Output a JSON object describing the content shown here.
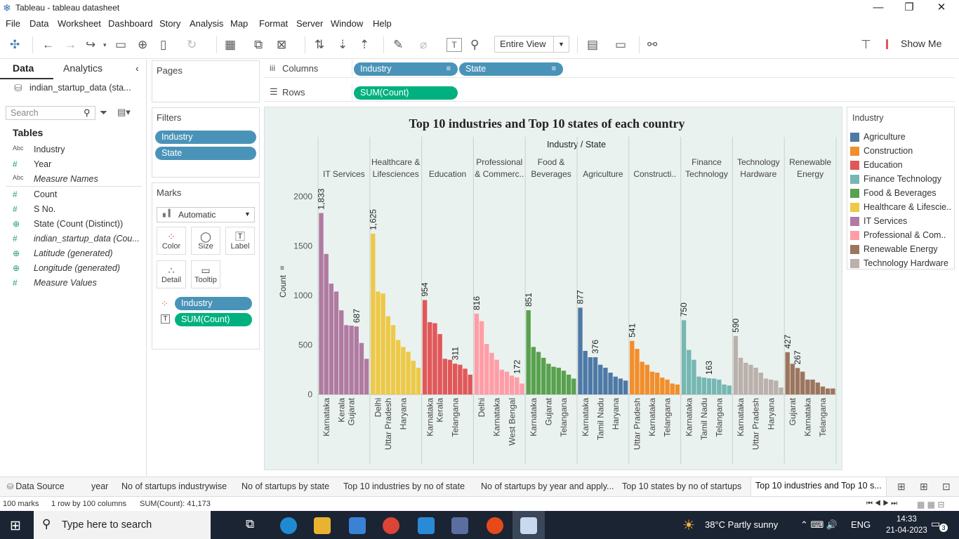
{
  "window": {
    "title": "Tableau - tableau datasheet"
  },
  "menu": [
    "File",
    "Data",
    "Worksheet",
    "Dashboard",
    "Story",
    "Analysis",
    "Map",
    "Format",
    "Server",
    "Window",
    "Help"
  ],
  "toolbar": {
    "fit": "Entire View",
    "show_me": "Show Me"
  },
  "data_pane": {
    "tabs": [
      "Data",
      "Analytics"
    ],
    "source": "indian_startup_data (sta...",
    "search_placeholder": "Search",
    "tables_heading": "Tables",
    "fields": [
      {
        "icon": "Abc",
        "name": "Industry"
      },
      {
        "icon": "#",
        "name": "Year"
      },
      {
        "icon": "Abc",
        "name": "Measure Names"
      },
      {
        "icon": "#",
        "name": "Count"
      },
      {
        "icon": "#",
        "name": "S No."
      },
      {
        "icon": "globe",
        "name": "State (Count (Distinct))"
      },
      {
        "icon": "#",
        "name": "indian_startup_data (Cou..."
      },
      {
        "icon": "globe",
        "name": "Latitude (generated)"
      },
      {
        "icon": "globe",
        "name": "Longitude (generated)"
      },
      {
        "icon": "#",
        "name": "Measure Values"
      }
    ]
  },
  "pages": {
    "title": "Pages"
  },
  "filters": {
    "title": "Filters",
    "pills": [
      "Industry",
      "State"
    ]
  },
  "marks": {
    "title": "Marks",
    "type": "Automatic",
    "buttons": [
      "Color",
      "Size",
      "Label",
      "Detail",
      "Tooltip"
    ],
    "pills": [
      {
        "label": "Industry"
      },
      {
        "label": "SUM(Count)"
      }
    ]
  },
  "shelves": {
    "columns_label": "Columns",
    "columns": [
      "Industry",
      "State"
    ],
    "rows_label": "Rows",
    "rows": [
      "SUM(Count)"
    ]
  },
  "legend": {
    "title": "Industry",
    "items": [
      {
        "label": "Agriculture",
        "color": "#4e79a7"
      },
      {
        "label": "Construction",
        "color": "#f28e2b"
      },
      {
        "label": "Education",
        "color": "#e15759"
      },
      {
        "label": "Finance Technology",
        "color": "#76b7b2"
      },
      {
        "label": "Food & Beverages",
        "color": "#59a14f"
      },
      {
        "label": "Healthcare & Lifescie...",
        "color": "#edc948"
      },
      {
        "label": "IT Services",
        "color": "#b07aa1"
      },
      {
        "label": "Professional & Com..",
        "color": "#ff9da7"
      },
      {
        "label": "Renewable Energy",
        "color": "#9c755f"
      },
      {
        "label": "Technology Hardware",
        "color": "#bab0ac"
      }
    ]
  },
  "chart_data": {
    "type": "bar",
    "title": "Top 10 industries and Top 10 states of each country",
    "header_title": "Industry / State",
    "ylabel": "Count",
    "ylim": [
      0,
      2050
    ],
    "yticks": [
      0,
      500,
      1000,
      1500,
      2000
    ],
    "panes": [
      {
        "industry": "IT Services",
        "header": [
          "IT Services"
        ],
        "color": "#b07aa1",
        "values": [
          1833,
          1420,
          1120,
          1040,
          850,
          700,
          695,
          687,
          520,
          360
        ],
        "labels": [
          {
            "i": 0,
            "text": "1,833"
          },
          {
            "i": 7,
            "text": "687"
          }
        ],
        "states": [
          {
            "i": 1,
            "text": "Karnataka"
          },
          {
            "i": 4,
            "text": "Kerala"
          },
          {
            "i": 6,
            "text": "Gujarat"
          }
        ]
      },
      {
        "industry": "Healthcare & Lifesciences",
        "header": [
          "Healthcare &",
          "Lifesciences"
        ],
        "color": "#edc948",
        "values": [
          1625,
          1040,
          1020,
          790,
          700,
          550,
          480,
          430,
          340,
          270
        ],
        "labels": [
          {
            "i": 0,
            "text": "1,625"
          }
        ],
        "states": [
          {
            "i": 1,
            "text": "Delhi"
          },
          {
            "i": 3,
            "text": "Uttar Pradesh"
          },
          {
            "i": 6,
            "text": "Haryana"
          }
        ]
      },
      {
        "industry": "Education",
        "header": [
          "Education"
        ],
        "color": "#e15759",
        "values": [
          954,
          730,
          720,
          610,
          360,
          350,
          311,
          300,
          260,
          200
        ],
        "labels": [
          {
            "i": 0,
            "text": "954"
          },
          {
            "i": 6,
            "text": "311"
          }
        ],
        "states": [
          {
            "i": 1,
            "text": "Karnataka"
          },
          {
            "i": 3,
            "text": "Kerala"
          },
          {
            "i": 6,
            "text": "Telangana"
          }
        ]
      },
      {
        "industry": "Professional & Commercial",
        "header": [
          "Professional",
          "& Commerc.."
        ],
        "color": "#ff9da7",
        "values": [
          816,
          740,
          510,
          420,
          350,
          250,
          230,
          190,
          172,
          110
        ],
        "labels": [
          {
            "i": 0,
            "text": "816"
          },
          {
            "i": 8,
            "text": "172"
          }
        ],
        "states": [
          {
            "i": 1,
            "text": "Delhi"
          },
          {
            "i": 4,
            "text": "Karnataka"
          },
          {
            "i": 7,
            "text": "West Bengal"
          }
        ]
      },
      {
        "industry": "Food & Beverages",
        "header": [
          "Food &",
          "Beverages"
        ],
        "color": "#59a14f",
        "values": [
          851,
          480,
          430,
          370,
          310,
          280,
          270,
          240,
          200,
          160
        ],
        "labels": [
          {
            "i": 0,
            "text": "851"
          }
        ],
        "states": [
          {
            "i": 1,
            "text": "Karnataka"
          },
          {
            "i": 4,
            "text": "Gujarat"
          },
          {
            "i": 7,
            "text": "Telangana"
          }
        ]
      },
      {
        "industry": "Agriculture",
        "header": [
          "Agriculture"
        ],
        "color": "#4e79a7",
        "values": [
          877,
          440,
          376,
          376,
          300,
          270,
          220,
          180,
          160,
          140
        ],
        "labels": [
          {
            "i": 0,
            "text": "877"
          },
          {
            "i": 3,
            "text": "376"
          }
        ],
        "states": [
          {
            "i": 1,
            "text": "Karnataka"
          },
          {
            "i": 4,
            "text": "Tamil Nadu"
          },
          {
            "i": 7,
            "text": "Haryana"
          }
        ]
      },
      {
        "industry": "Construction",
        "header": [
          "Constructi.."
        ],
        "color": "#f28e2b",
        "values": [
          541,
          460,
          330,
          300,
          230,
          220,
          170,
          150,
          110,
          100
        ],
        "labels": [
          {
            "i": 0,
            "text": "541"
          }
        ],
        "states": [
          {
            "i": 1,
            "text": "Uttar Pradesh"
          },
          {
            "i": 4,
            "text": "Karnataka"
          },
          {
            "i": 7,
            "text": "Telangana"
          }
        ]
      },
      {
        "industry": "Finance Technology",
        "header": [
          "Finance",
          "Technology"
        ],
        "color": "#76b7b2",
        "values": [
          750,
          450,
          350,
          180,
          170,
          163,
          160,
          150,
          100,
          90
        ],
        "labels": [
          {
            "i": 0,
            "text": "750"
          },
          {
            "i": 5,
            "text": "163"
          }
        ],
        "states": [
          {
            "i": 1,
            "text": "Karnataka"
          },
          {
            "i": 4,
            "text": "Tamil Nadu"
          },
          {
            "i": 7,
            "text": "Telangana"
          }
        ]
      },
      {
        "industry": "Technology Hardware",
        "header": [
          "Technology",
          "Hardware"
        ],
        "color": "#bab0ac",
        "values": [
          590,
          370,
          320,
          300,
          270,
          220,
          160,
          150,
          140,
          70
        ],
        "labels": [
          {
            "i": 0,
            "text": "590"
          }
        ],
        "states": [
          {
            "i": 1,
            "text": "Karnataka"
          },
          {
            "i": 4,
            "text": "Uttar Pradesh"
          },
          {
            "i": 7,
            "text": "Haryana"
          }
        ]
      },
      {
        "industry": "Renewable Energy",
        "header": [
          "Renewable",
          "Energy"
        ],
        "color": "#9c755f",
        "values": [
          427,
          310,
          267,
          230,
          150,
          150,
          120,
          80,
          60,
          60
        ],
        "labels": [
          {
            "i": 0,
            "text": "427"
          },
          {
            "i": 2,
            "text": "267"
          }
        ],
        "states": [
          {
            "i": 1,
            "text": "Gujarat"
          },
          {
            "i": 4,
            "text": "Karnataka"
          },
          {
            "i": 7,
            "text": "Telangana"
          }
        ]
      }
    ]
  },
  "sheet_tabs": {
    "data_source": "Data Source",
    "tabs": [
      "year",
      "No of startups industrywise",
      "No of startups by state",
      "Top 10 industries by no of state",
      "No of startups by year and apply...",
      "Top 10 states by no of startups",
      "Top 10 industries and Top 10 s..."
    ]
  },
  "status": {
    "marks": "100 marks",
    "shape": "1 row by 100 columns",
    "sum": "SUM(Count): 41,173"
  },
  "taskbar": {
    "search_placeholder": "Type here to search",
    "weather": "38°C  Partly sunny",
    "lang": "ENG",
    "time": "14:33",
    "date": "21-04-2023",
    "notif": "3"
  }
}
